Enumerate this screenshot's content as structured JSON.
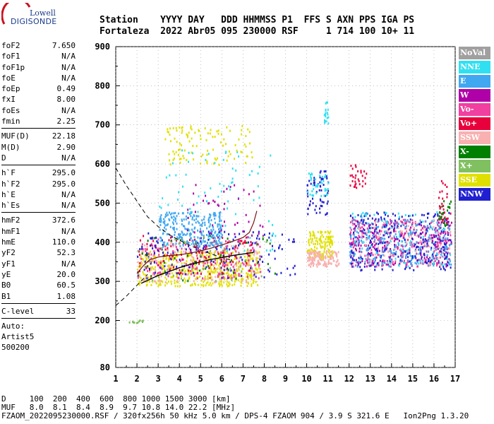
{
  "logo": {
    "line1": "Lowell",
    "line2": "DIGISONDE"
  },
  "header": {
    "labels": "Station    YYYY DAY   DDD HHMMSS P1  FFS S AXN PPS IGA PS",
    "values": "Fortaleza  2022 Abr05 095 230000 RSF     1 714 100 10+ 11"
  },
  "params": {
    "group1": [
      {
        "k": "foF2",
        "v": "7.650"
      },
      {
        "k": "foF1",
        "v": "N/A"
      },
      {
        "k": "foF1p",
        "v": "N/A"
      },
      {
        "k": "foE",
        "v": "N/A"
      },
      {
        "k": "foEp",
        "v": "0.49"
      },
      {
        "k": "fxI",
        "v": "8.00"
      },
      {
        "k": "foEs",
        "v": "N/A"
      },
      {
        "k": "fmin",
        "v": "2.25"
      }
    ],
    "group2": [
      {
        "k": "MUF(D)",
        "v": "22.18"
      },
      {
        "k": "M(D)",
        "v": "2.90"
      },
      {
        "k": "D",
        "v": "N/A"
      }
    ],
    "group3": [
      {
        "k": "h`F",
        "v": "295.0"
      },
      {
        "k": "h`F2",
        "v": "295.0"
      },
      {
        "k": "h`E",
        "v": "N/A"
      },
      {
        "k": "h`Es",
        "v": "N/A"
      }
    ],
    "group4": [
      {
        "k": "hmF2",
        "v": "372.6"
      },
      {
        "k": "hmF1",
        "v": "N/A"
      },
      {
        "k": "hmE",
        "v": "110.0"
      },
      {
        "k": "yF2",
        "v": "52.3"
      },
      {
        "k": "yF1",
        "v": "N/A"
      },
      {
        "k": "yE",
        "v": "20.0"
      },
      {
        "k": "B0",
        "v": "60.5"
      },
      {
        "k": "B1",
        "v": "1.08"
      }
    ],
    "group5": [
      {
        "k": "C-level",
        "v": "33"
      }
    ],
    "auto": [
      "Auto:",
      "Artist5",
      "500200"
    ]
  },
  "legend": [
    {
      "label": "NoVal",
      "color": "#a0a0a0"
    },
    {
      "label": "NNE",
      "color": "#30e0f0"
    },
    {
      "label": "E",
      "color": "#40a8f0"
    },
    {
      "label": "W",
      "color": "#b000a8"
    },
    {
      "label": "Vo-",
      "color": "#f040a0"
    },
    {
      "label": "Vo+",
      "color": "#e8003c"
    },
    {
      "label": "SSW",
      "color": "#f8b0b0"
    },
    {
      "label": "X-",
      "color": "#008000"
    },
    {
      "label": "X+",
      "color": "#80c060"
    },
    {
      "label": "SSE",
      "color": "#e0e000"
    },
    {
      "label": "NNW",
      "color": "#2020d0"
    }
  ],
  "footer": {
    "line1": "D     100  200  400  600  800 1000 1500 3000 [km]",
    "line2": "MUF   8.0  8.1  8.4  8.9  9.7 10.8 14.0 22.2 [MHz]",
    "line3": "FZAOM_2022095230000.RSF / 320fx256h 50 kHz 5.0 km / DPS-4 FZAOM 904 / 3.9 S 321.6 E   Ion2Png 1.3.20"
  },
  "chart_data": {
    "type": "scatter",
    "x_ticks": [
      "1",
      "2",
      "3",
      "4",
      "5",
      "6",
      "7",
      "8",
      "9",
      "10",
      "11",
      "12",
      "13",
      "14",
      "15",
      "16",
      "17"
    ],
    "y_ticks": [
      "80",
      "200",
      "300",
      "400",
      "500",
      "600",
      "700",
      "800",
      "900"
    ],
    "xlim": [
      1,
      17
    ],
    "ylim": [
      80,
      900
    ],
    "grid": true,
    "profile_curve": [
      [
        2.2,
        295
      ],
      [
        2.6,
        305
      ],
      [
        3.0,
        315
      ],
      [
        3.5,
        325
      ],
      [
        4.0,
        335
      ],
      [
        4.5,
        343
      ],
      [
        5.0,
        350
      ],
      [
        5.5,
        356
      ],
      [
        6.0,
        361
      ],
      [
        6.5,
        366
      ],
      [
        7.0,
        370
      ],
      [
        7.5,
        374
      ]
    ],
    "trace_curve": [
      [
        2.0,
        320
      ],
      [
        2.3,
        340
      ],
      [
        2.6,
        355
      ],
      [
        3.0,
        362
      ],
      [
        3.5,
        366
      ],
      [
        4.0,
        368
      ],
      [
        4.5,
        372
      ],
      [
        5.0,
        378
      ],
      [
        5.5,
        385
      ],
      [
        6.0,
        393
      ],
      [
        6.5,
        402
      ],
      [
        7.0,
        412
      ],
      [
        7.3,
        425
      ],
      [
        7.5,
        450
      ],
      [
        7.65,
        480
      ]
    ],
    "dashed_curve_upper": [
      [
        1.0,
        590
      ],
      [
        1.5,
        545
      ],
      [
        2.0,
        505
      ],
      [
        2.5,
        465
      ],
      [
        3.0,
        440
      ],
      [
        3.5,
        420
      ],
      [
        4.0,
        405
      ],
      [
        4.5,
        392
      ],
      [
        5.0,
        380
      ],
      [
        5.5,
        370
      ],
      [
        6.0,
        361
      ],
      [
        6.5,
        353
      ]
    ],
    "dashed_curve_lower": [
      [
        1.0,
        238
      ],
      [
        1.5,
        262
      ],
      [
        2.0,
        290
      ],
      [
        2.5,
        318
      ]
    ],
    "echo_clusters": [
      {
        "series": "SSE",
        "x": [
          2.0,
          7.8
        ],
        "y": [
          290,
          380
        ],
        "n": 500
      },
      {
        "series": "SSW",
        "x": [
          2.0,
          7.8
        ],
        "y": [
          300,
          400
        ],
        "n": 160
      },
      {
        "series": "Vo-",
        "x": [
          2.0,
          7.8
        ],
        "y": [
          310,
          410
        ],
        "n": 180
      },
      {
        "series": "Vo+",
        "x": [
          2.0,
          7.5
        ],
        "y": [
          320,
          420
        ],
        "n": 110
      },
      {
        "series": "NNW",
        "x": [
          2.0,
          9.5
        ],
        "y": [
          310,
          430
        ],
        "n": 150
      },
      {
        "series": "E",
        "x": [
          3.0,
          6.0
        ],
        "y": [
          390,
          480
        ],
        "n": 260
      },
      {
        "series": "NNE",
        "x": [
          3.0,
          8.5
        ],
        "y": [
          380,
          640
        ],
        "n": 80
      },
      {
        "series": "W",
        "x": [
          4.0,
          8.0
        ],
        "y": [
          350,
          550
        ],
        "n": 60
      },
      {
        "series": "SSE",
        "x": [
          3.3,
          7.5
        ],
        "y": [
          600,
          700
        ],
        "n": 110
      },
      {
        "series": "X-",
        "x": [
          2.0,
          8.5
        ],
        "y": [
          300,
          420
        ],
        "n": 40
      },
      {
        "series": "X+",
        "x": [
          2.0,
          8.5
        ],
        "y": [
          300,
          420
        ],
        "n": 40
      },
      {
        "series": "SSE",
        "x": [
          10.0,
          11.2
        ],
        "y": [
          360,
          430
        ],
        "n": 140
      },
      {
        "series": "SSW",
        "x": [
          10.0,
          11.5
        ],
        "y": [
          340,
          380
        ],
        "n": 120
      },
      {
        "series": "NNW",
        "x": [
          10.0,
          11.0
        ],
        "y": [
          470,
          590
        ],
        "n": 60
      },
      {
        "series": "NNE",
        "x": [
          10.0,
          11.0
        ],
        "y": [
          520,
          580
        ],
        "n": 40
      },
      {
        "series": "NNE",
        "x": [
          10.8,
          11.0
        ],
        "y": [
          700,
          760
        ],
        "n": 20
      },
      {
        "series": "W",
        "x": [
          12.0,
          16.8
        ],
        "y": [
          340,
          460
        ],
        "n": 300
      },
      {
        "series": "Vo-",
        "x": [
          12.0,
          16.8
        ],
        "y": [
          340,
          460
        ],
        "n": 220
      },
      {
        "series": "E",
        "x": [
          12.0,
          16.8
        ],
        "y": [
          340,
          460
        ],
        "n": 260
      },
      {
        "series": "NNW",
        "x": [
          12.0,
          16.8
        ],
        "y": [
          330,
          480
        ],
        "n": 220
      },
      {
        "series": "NNE",
        "x": [
          12.0,
          16.8
        ],
        "y": [
          340,
          480
        ],
        "n": 90
      },
      {
        "series": "SSW",
        "x": [
          12.0,
          16.8
        ],
        "y": [
          340,
          460
        ],
        "n": 80
      },
      {
        "series": "Vo+",
        "x": [
          12.0,
          12.8
        ],
        "y": [
          540,
          600
        ],
        "n": 30
      },
      {
        "series": "Vo+",
        "x": [
          16.2,
          16.8
        ],
        "y": [
          450,
          560
        ],
        "n": 30
      },
      {
        "series": "X-",
        "x": [
          16.2,
          16.8
        ],
        "y": [
          440,
          520
        ],
        "n": 20
      },
      {
        "series": "X+",
        "x": [
          1.6,
          2.3
        ],
        "y": [
          196,
          204
        ],
        "n": 12
      }
    ]
  }
}
